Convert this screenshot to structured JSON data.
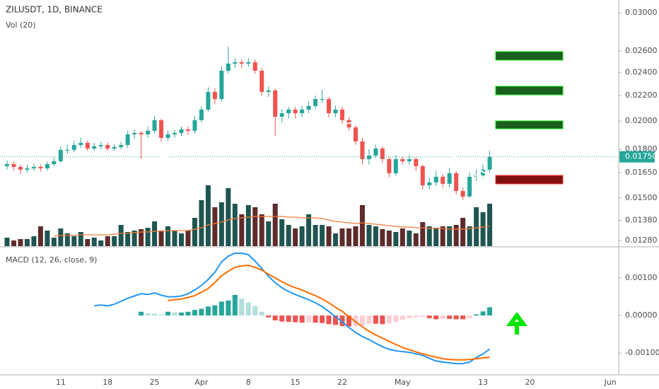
{
  "chart_data": {
    "type": "candlestick",
    "title": "ZILUSDT, 1D, BINANCE",
    "categories": [
      null,
      null,
      null,
      null,
      null,
      null,
      null,
      null,
      "11",
      null,
      null,
      null,
      null,
      null,
      null,
      "18",
      null,
      null,
      null,
      null,
      null,
      null,
      "25",
      null,
      null,
      null,
      null,
      null,
      null,
      "Apr",
      null,
      null,
      null,
      null,
      null,
      null,
      "8",
      null,
      null,
      null,
      null,
      null,
      null,
      "15",
      null,
      null,
      null,
      null,
      null,
      null,
      "22",
      null,
      null,
      null,
      null,
      null,
      null,
      null,
      null,
      "May",
      null,
      null,
      null,
      null,
      null,
      null,
      null,
      null,
      null,
      null,
      null,
      "13",
      null,
      null,
      null,
      null,
      null,
      null,
      "20",
      null,
      null,
      null,
      null,
      null,
      null,
      null,
      null,
      null,
      null,
      null,
      "Jun"
    ],
    "open": [
      0.0169,
      0.01703,
      0.01685,
      0.01668,
      0.01676,
      0.01685,
      0.01676,
      0.01703,
      0.01721,
      0.01796,
      0.01796,
      0.01829,
      0.01844,
      0.01805,
      0.0182,
      0.01829,
      0.01805,
      0.01815,
      0.01829,
      0.01903,
      0.01913,
      0.01903,
      0.01929,
      0.02007,
      0.01878,
      0.01903,
      0.01913,
      0.01939,
      0.01929,
      0.02007,
      0.02088,
      0.02231,
      0.02172,
      0.02415,
      0.0248,
      0.02493,
      0.0248,
      0.02493,
      0.02415,
      0.02231,
      0.02243,
      0.02033,
      0.0206,
      0.02088,
      0.0206,
      0.02088,
      0.02116,
      0.02172,
      0.02172,
      0.0206,
      0.02088,
      0.02007,
      0.01954,
      0.01854,
      0.01735,
      0.01758,
      0.01805,
      0.01735,
      0.01646,
      0.01735,
      0.01721,
      0.01735,
      0.0169,
      0.01573,
      0.0159,
      0.01624,
      0.01582,
      0.01646,
      0.0154,
      0.01508,
      0.01624,
      0.01633,
      0.01668,
      null,
      null,
      null,
      null,
      null,
      null,
      null,
      null,
      null,
      null,
      null,
      null,
      null,
      null,
      null,
      null,
      null,
      null
    ],
    "high": [
      0.01725,
      0.0172,
      0.017,
      0.017,
      0.01705,
      0.017,
      0.0172,
      0.01745,
      0.0182,
      0.0183,
      0.0186,
      0.0188,
      0.0186,
      0.01845,
      0.0185,
      0.01845,
      0.01835,
      0.0185,
      0.0193,
      0.01935,
      0.0193,
      0.0196,
      0.0204,
      0.0202,
      0.0193,
      0.01935,
      0.0196,
      0.0196,
      0.0204,
      0.0211,
      0.0227,
      0.0226,
      0.0245,
      0.0264,
      0.0253,
      0.0252,
      0.0253,
      0.0252,
      0.0244,
      0.0228,
      0.0226,
      0.0209,
      0.0211,
      0.0211,
      0.0212,
      0.0215,
      0.022,
      0.0225,
      0.0219,
      0.0212,
      0.0211,
      0.0203,
      0.0197,
      0.0188,
      0.018,
      0.0183,
      0.0182,
      0.0175,
      0.0176,
      0.0175,
      0.0176,
      0.0175,
      0.017,
      0.0162,
      0.0166,
      0.0164,
      0.0168,
      0.0166,
      0.0156,
      0.0165,
      0.0167,
      0.017,
      0.0179,
      null,
      null,
      null,
      null,
      null,
      null,
      null,
      null,
      null,
      null,
      null,
      null,
      null,
      null,
      null,
      null,
      null,
      null
    ],
    "low": [
      0.0167,
      0.0166,
      0.0164,
      0.0165,
      0.0166,
      0.01655,
      0.0166,
      0.0169,
      0.0171,
      0.0177,
      0.0178,
      0.0181,
      0.0179,
      0.0179,
      0.018,
      0.0179,
      0.0179,
      0.018,
      0.0181,
      0.0187,
      0.0174,
      0.0188,
      0.0191,
      0.0185,
      0.0186,
      0.0188,
      0.0189,
      0.019,
      0.0191,
      0.0199,
      0.0207,
      0.0213,
      0.0215,
      0.0239,
      0.0244,
      0.0244,
      0.0245,
      0.0239,
      0.022,
      0.0219,
      0.0188,
      0.0199,
      0.0202,
      0.0202,
      0.0203,
      0.0206,
      0.0209,
      0.0214,
      0.0203,
      0.0203,
      0.0197,
      0.0193,
      0.0183,
      0.017,
      0.017,
      0.0174,
      0.0171,
      0.0162,
      0.0163,
      0.017,
      0.017,
      0.0166,
      0.0155,
      0.0155,
      0.0157,
      0.0156,
      0.0156,
      0.0152,
      0.0149,
      0.015,
      0.016,
      0.0161,
      0.0165,
      null,
      null,
      null,
      null,
      null,
      null,
      null,
      null,
      null,
      null,
      null,
      null,
      null,
      null,
      null,
      null,
      null,
      null
    ],
    "close": [
      0.01703,
      0.01685,
      0.01668,
      0.01676,
      0.01685,
      0.01676,
      0.01703,
      0.01721,
      0.01796,
      0.01796,
      0.01829,
      0.01844,
      0.01805,
      0.0182,
      0.01829,
      0.01805,
      0.01815,
      0.01829,
      0.01903,
      0.01913,
      0.01903,
      0.01929,
      0.02007,
      0.01878,
      0.01903,
      0.01913,
      0.01939,
      0.01929,
      0.02007,
      0.02088,
      0.02231,
      0.02172,
      0.02415,
      0.0248,
      0.02493,
      0.0248,
      0.02493,
      0.02415,
      0.02231,
      0.02243,
      0.02033,
      0.0206,
      0.02088,
      0.0206,
      0.02088,
      0.02116,
      0.02172,
      0.02172,
      0.0206,
      0.02088,
      0.02007,
      0.01954,
      0.01854,
      0.01735,
      0.01758,
      0.01805,
      0.01735,
      0.01646,
      0.01735,
      0.01721,
      0.01735,
      0.0169,
      0.01573,
      0.0159,
      0.01624,
      0.01582,
      0.01646,
      0.0154,
      0.01508,
      0.01624,
      0.01633,
      0.01668,
      0.01749,
      null,
      null,
      null,
      null,
      null,
      null,
      null,
      null,
      null,
      null,
      null,
      null,
      null,
      null,
      null,
      null,
      null,
      null
    ],
    "up_color": "#26a69a",
    "down_color": "#ef5350",
    "log": true,
    "ylim": [
      0.01253,
      0.03146
    ],
    "yticks": [
      {
        "value": 0.03,
        "label": "0.03000"
      },
      {
        "value": 0.026,
        "label": "0.02600"
      },
      {
        "value": 0.024,
        "label": "0.02400"
      },
      {
        "value": 0.022,
        "label": "0.02200"
      },
      {
        "value": 0.02,
        "label": "0.02000"
      },
      {
        "value": 0.018,
        "label": "0.01800"
      },
      {
        "value": 0.0165,
        "label": "0.01650"
      },
      {
        "value": 0.015,
        "label": "0.01500"
      },
      {
        "value": 0.0138,
        "label": "0.01380"
      },
      {
        "value": 0.0128,
        "label": "0.01280"
      }
    ],
    "last_price": {
      "value": 0.0175,
      "label": "0.01750"
    },
    "volume": {
      "label": "Vol (20)",
      "values": [
        12,
        8,
        10,
        10,
        14,
        28,
        22,
        12,
        25,
        18,
        14,
        20,
        10,
        12,
        8,
        14,
        14,
        30,
        20,
        22,
        24,
        26,
        35,
        22,
        28,
        22,
        18,
        22,
        40,
        65,
        86,
        55,
        62,
        82,
        60,
        45,
        58,
        55,
        45,
        35,
        60,
        38,
        30,
        25,
        28,
        45,
        30,
        30,
        28,
        18,
        25,
        25,
        28,
        58,
        30,
        28,
        24,
        22,
        20,
        25,
        22,
        18,
        34,
        28,
        26,
        28,
        28,
        30,
        40,
        28,
        55,
        48,
        60,
        null,
        null,
        null,
        null,
        null,
        null,
        null,
        null,
        null,
        null,
        null,
        null,
        null,
        null,
        null,
        null,
        null,
        null
      ],
      "ma": [
        null,
        null,
        null,
        null,
        null,
        null,
        null,
        14,
        15,
        15,
        15,
        16,
        16,
        16,
        16,
        16,
        17,
        18,
        18,
        19,
        20,
        20,
        21,
        21,
        22,
        22,
        22,
        22,
        24,
        26,
        30,
        32,
        34,
        37,
        39,
        40,
        41,
        42,
        42,
        42,
        42,
        42,
        41,
        41,
        40,
        40,
        40,
        39,
        37,
        35,
        34,
        33,
        32,
        33,
        32,
        31,
        30,
        29,
        28,
        27,
        27,
        26,
        26,
        25,
        25,
        25,
        24,
        24,
        24,
        25,
        26,
        27,
        28,
        null,
        null,
        null,
        null,
        null,
        null,
        null,
        null,
        null,
        null,
        null,
        null,
        null,
        null,
        null,
        null,
        null,
        null
      ],
      "up_color": "#1f5550",
      "down_color": "#5e2b2b",
      "ma_color": "#f57c3b",
      "ylim": [
        0,
        100
      ]
    },
    "macd": {
      "label": "MACD (12, 26, close, 9)",
      "macd": [
        null,
        null,
        null,
        null,
        null,
        null,
        null,
        null,
        null,
        null,
        null,
        null,
        null,
        0.00026,
        0.00028,
        0.00026,
        0.0003,
        0.00038,
        0.00046,
        0.00052,
        0.00058,
        0.00056,
        0.0006,
        0.00054,
        0.0005,
        0.0005,
        0.00052,
        0.00058,
        0.00068,
        0.0008,
        0.00096,
        0.00115,
        0.00143,
        0.00158,
        0.00166,
        0.00166,
        0.00162,
        0.00145,
        0.00125,
        0.00105,
        0.00087,
        0.00074,
        0.00064,
        0.00056,
        0.00049,
        0.00042,
        0.00034,
        0.00024,
        0.00011,
        -3e-05,
        -0.00017,
        -0.00032,
        -0.00045,
        -0.00056,
        -0.00064,
        -0.00074,
        -0.00083,
        -0.0009,
        -0.00094,
        -0.00096,
        -0.00098,
        -0.00102,
        -0.00106,
        -0.00114,
        -0.00121,
        -0.00124,
        -0.00126,
        -0.00128,
        -0.00128,
        -0.00124,
        -0.00112,
        -0.00102,
        -0.00089,
        null,
        null,
        null,
        null,
        null,
        null,
        null,
        null,
        null,
        null,
        null,
        null,
        null,
        null,
        null,
        null,
        null,
        null
      ],
      "signal": [
        null,
        null,
        null,
        null,
        null,
        null,
        null,
        null,
        null,
        null,
        null,
        null,
        null,
        null,
        null,
        null,
        null,
        null,
        null,
        null,
        null,
        null,
        null,
        null,
        0.0004,
        0.00042,
        0.00044,
        0.00048,
        0.00053,
        0.00062,
        0.00072,
        0.00088,
        0.00106,
        0.00118,
        0.00128,
        0.00132,
        0.00134,
        0.00128,
        0.00121,
        0.0011,
        0.001,
        0.0009,
        0.00081,
        0.00074,
        0.00068,
        0.0006,
        0.00053,
        0.00044,
        0.00034,
        0.00022,
        0.00011,
        -3e-05,
        -0.00017,
        -0.0003,
        -0.00042,
        -0.00052,
        -0.0006,
        -0.00069,
        -0.00077,
        -0.00085,
        -0.00091,
        -0.00097,
        -0.00102,
        -0.00107,
        -0.00111,
        -0.00115,
        -0.00117,
        -0.00118,
        -0.00118,
        -0.00117,
        -0.00115,
        -0.00113,
        -0.00111,
        null,
        null,
        null,
        null,
        null,
        null,
        null,
        null,
        null,
        null,
        null,
        null,
        null,
        null,
        null,
        null,
        null,
        null
      ],
      "histogram": [
        null,
        null,
        null,
        null,
        null,
        null,
        null,
        null,
        null,
        null,
        null,
        null,
        null,
        null,
        null,
        null,
        null,
        null,
        null,
        null,
        0.0001,
        6e-05,
        5e-05,
        3e-05,
        0.0001,
        8e-05,
        8e-05,
        0.0001,
        0.00015,
        0.00018,
        0.00024,
        0.00027,
        0.00037,
        0.0004,
        0.00055,
        0.00045,
        0.00035,
        0.00025,
        0.0001,
        -5e-05,
        -0.00013,
        -0.00016,
        -0.00017,
        -0.00018,
        -0.00019,
        -0.00018,
        -0.00019,
        -0.0002,
        -0.00023,
        -0.00025,
        -0.00028,
        -0.00029,
        -0.00028,
        -0.00026,
        -0.00022,
        -0.00022,
        -0.00023,
        -0.00021,
        -0.00017,
        -0.00011,
        -7e-05,
        -5e-05,
        -4e-05,
        -7e-05,
        -0.0001,
        -9e-05,
        -9e-05,
        -0.0001,
        -0.0001,
        -7e-05,
        3e-05,
        0.00011,
        0.00022,
        null,
        null,
        null,
        null,
        null,
        null,
        null,
        null,
        null,
        null,
        null,
        null,
        null,
        null,
        null,
        null,
        null,
        null
      ],
      "macd_color": "#2196f3",
      "signal_color": "#ff6d00",
      "ylim": [
        -0.00158,
        0.00181
      ],
      "yticks": [
        {
          "value": 0.001,
          "label": "0.00100"
        },
        {
          "value": 0,
          "label": "0.00000"
        },
        {
          "value": -0.001,
          "label": "-0.00100"
        }
      ]
    }
  }
}
